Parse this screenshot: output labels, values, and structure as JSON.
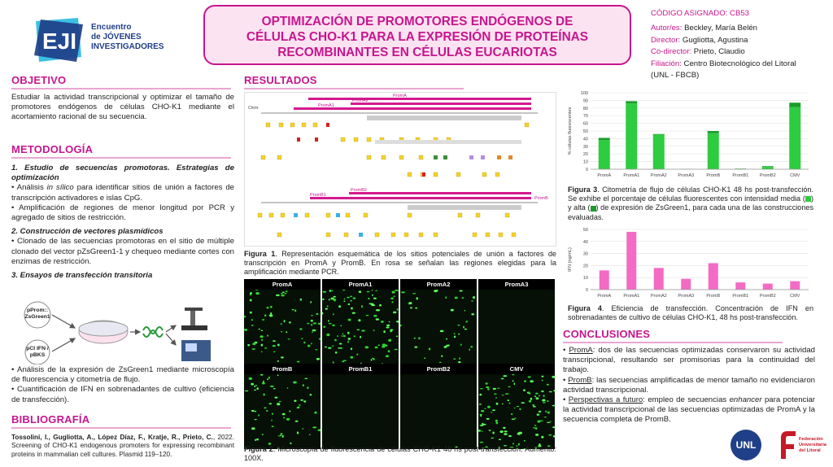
{
  "logo": {
    "mark": "EJI",
    "line1": "Encuentro",
    "line2": "de JÓVENES",
    "line3": "INVESTIGADORES"
  },
  "header": {
    "title_line1": "OPTIMIZACIÓN DE PROMOTORES ENDÓGENOS DE",
    "title_line2": "CÉLULAS CHO-K1 PARA LA EXPRESIÓN DE PROTEÍNAS",
    "title_line3": "RECOMBINANTES EN CÉLULAS EUCARIOTAS"
  },
  "meta": {
    "code": "CÓDIGO ASIGNADO: CB53",
    "author_key": "Autor/es:",
    "author_val": "Beckley, María Belén",
    "director_key": "Director:",
    "director_val": "Gugliotta, Agustina",
    "codirector_key": "Co-director:",
    "codirector_val": "Prieto, Claudio",
    "filiacion_key": "Filiación:",
    "filiacion_val": "Centro Biotecnológico del Litoral",
    "filiacion_val2": "(UNL - FBCB)"
  },
  "objetivo": {
    "title": "OBJETIVO",
    "text": "Estudiar la actividad transcripcional y optimizar el tamaño de promotores endógenos de células CHO-K1 mediante el acortamiento racional de su secuencia."
  },
  "metodologia": {
    "title": "METODOLOGÍA",
    "s1_title": "1. Estudio de secuencias promotoras. Estrategias de optimización",
    "s1_b1a": "• Análisis ",
    "s1_b1b": "in sílico",
    "s1_b1c": " para identificar sitios de unión a factores de transcripción activadores e islas CpG.",
    "s1_b2": "• Amplificación de regiones de menor longitud por PCR y agregado de sitios de restricción.",
    "s2_title": "2. Construcción de vectores plasmídicos",
    "s2_b1": "• Clonado de las secuencias promotoras en el sitio de múltiple clonado del vector pZsGreen1-1 y chequeo mediante cortes con enzimas de restricción.",
    "s3_title": "3. Ensayos de transfección transitoria",
    "plasmid1": "pProm::\nZsGreen1",
    "plasmid2": "pCI IFN /\npBKS",
    "s3_b1": "• Análisis de la expresión de ZsGreen1 mediante microscopía de fluorescencia y citometría de flujo.",
    "s3_b2": "• Cuantificación de IFN en sobrenadantes de cultivo (eficiencia de transfección)."
  },
  "bibliografia": {
    "title": "BIBLIOGRAFÍA",
    "ref_authors": "Tossolini, I., Gugliotta, A., López Díaz, F., Kratje, R., Prieto, C.",
    "ref_rest": ", 2022. Screening of CHO-K1 endogenous promoters for expressing recombinant proteins in mammalian cell cultures. Plasmid 119–120."
  },
  "resultados": {
    "title": "RESULTADOS",
    "promA_label": "PromA",
    "promA1_label": "PromA1",
    "promA2_label": "PromA2",
    "promB_label": "PromB",
    "promB1_label": "PromB1",
    "promB2_label": "PromB2",
    "fig1_bold": "Figura 1",
    "fig1_text": ". Representación esquemática de los sitios potenciales de unión a factores de transcripción en PromA y PromB. En rosa se señalan las regiones elegidas para la amplificación mediante PCR.",
    "fig2_bold": "Figura 2",
    "fig2_text": ". Microscopía de fluorescencia de células CHO-K1 48 hs post-transfección. Aumento: 100X.",
    "micro_labels": [
      "PromA",
      "PromA1",
      "PromA2",
      "PromA3",
      "PromB",
      "PromB1",
      "PromB2",
      "CMV"
    ],
    "fig3_bold": "Figura 3",
    "fig3_text_a": ". Citometría de flujo de células CHO-K1 48 hs post-transfección. Se exhibe el porcentaje de células fluorescentes con intensidad media (",
    "fig3_text_b": ") y alta (",
    "fig3_text_c": ") de expresión de ZsGreen1, para cada una de las construcciones evaluadas.",
    "fig4_bold": "Figura 4",
    "fig4_text": ". Eficiencia de transfección. Concentración de IFN en sobrenadantes de cultivo de células CHO-K1, 48 hs post-transfección."
  },
  "conclusiones": {
    "title": "CONCLUSIONES",
    "c1_u": "PromA",
    "c1_t": ": dos de las secuencias optimizadas conservaron su actividad transcripcional, resultando ser promisorias para la continuidad del trabajo.",
    "c2_u": "PromB",
    "c2_t": ": las secuencias amplificadas de menor tamaño no evidenciaron actividad transcripcional.",
    "c3_u": "Perspectivas a futuro",
    "c3_t1": ": empleo de secuencias ",
    "c3_t2": "enhancer",
    "c3_t3": " para potenciar la actividad transcripcional de las secuencias optimizadas de PromA y la secuencia completa de PromB."
  },
  "footer": {
    "unl": "UNL",
    "fed1": "Federación",
    "fed2": "Universitaria",
    "fed3": "del Litoral"
  },
  "colors": {
    "accent": "#c6168d",
    "green_medium": "#2ecc40",
    "green_high": "#1a9e2a",
    "pink_bar": "#f36bc4"
  },
  "chart_data": [
    {
      "type": "bar",
      "stacked": true,
      "categories": [
        "PromA",
        "PromA1",
        "PromA2",
        "PromA3",
        "PromB",
        "PromB1",
        "PromB2",
        "CMV"
      ],
      "series": [
        {
          "name": "",
          "values": [
            38,
            86,
            45,
            0.5,
            47,
            0.5,
            3,
            81
          ]
        },
        {
          "name": "",
          "values": [
            3,
            3,
            1,
            0,
            3,
            0.3,
            1,
            6
          ]
        }
      ],
      "ylabel": "% células fluorescentes",
      "ylim": [
        0,
        100
      ],
      "yticks": [
        0,
        10,
        20,
        30,
        40,
        50,
        60,
        70,
        80,
        90,
        100
      ],
      "grid": true
    },
    {
      "type": "bar",
      "categories": [
        "PromA",
        "PromA1",
        "PromA2",
        "PromA3",
        "PromB",
        "PromB1",
        "PromB2",
        "CMV"
      ],
      "values": [
        16,
        48,
        18,
        9,
        22,
        6,
        5,
        7
      ],
      "ylabel": "IFN (ng/mL)",
      "ylim": [
        0,
        50
      ],
      "yticks": [
        0,
        10,
        20,
        30,
        40,
        50
      ],
      "grid": true
    }
  ]
}
